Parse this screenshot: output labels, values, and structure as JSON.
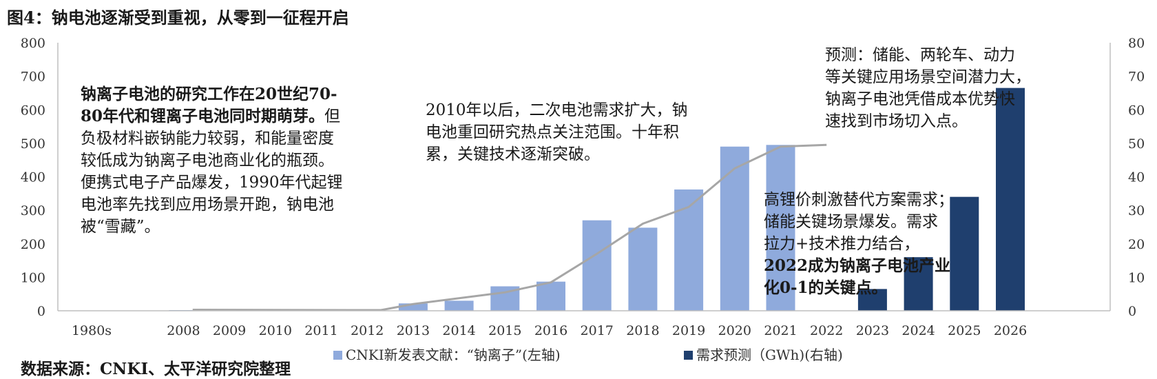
{
  "title": "图4：钠电池逐渐受到重视，从零到一征程开启",
  "source": "数据来源：CNKI、太平洋研究院整理",
  "colors": {
    "literature": "#8FAADC",
    "forecast": "#1F3F6E",
    "trend_line": "#A6A6A6",
    "highlight_year": "#C00000",
    "axis": "#BFBFBF"
  },
  "annotations": {
    "history": [
      {
        "parts": [
          {
            "text": "钠离子电池的研究工作在20世纪70-",
            "bold": true
          }
        ]
      },
      {
        "parts": [
          {
            "text": "80年代和锂离子电池同时期萌芽。",
            "bold": true
          },
          {
            "text": "但",
            "bold": false
          }
        ]
      },
      {
        "parts": [
          {
            "text": "负极材料嵌钠能力较弱，和能量密度",
            "bold": false
          }
        ]
      },
      {
        "parts": [
          {
            "text": "较低成为钠离子电池商业化的瓶颈。",
            "bold": false
          }
        ]
      },
      {
        "parts": [
          {
            "text": "便携式电子产品爆发，1990年代起锂",
            "bold": false
          }
        ]
      },
      {
        "parts": [
          {
            "text": "电池率先找到应用场景开跑，钠电池",
            "bold": false
          }
        ]
      },
      {
        "parts": [
          {
            "text": "被“雪藏”。",
            "bold": false
          }
        ]
      }
    ],
    "revival": [
      {
        "parts": [
          {
            "text": "2010年以后，二次电池需求扩大，钠",
            "bold": false
          }
        ]
      },
      {
        "parts": [
          {
            "text": "电池重回研究热点关注范围。十年积",
            "bold": false
          }
        ]
      },
      {
        "parts": [
          {
            "text": "累，关键技术逐渐突破。",
            "bold": false
          }
        ]
      }
    ],
    "drivers": [
      {
        "parts": [
          {
            "text": "高锂价刺激替代方案需求；",
            "bold": false
          }
        ]
      },
      {
        "parts": [
          {
            "text": "储能关键场景爆发。需求",
            "bold": false
          }
        ]
      },
      {
        "parts": [
          {
            "text": "拉力+技术推力结合，",
            "bold": false
          }
        ]
      },
      {
        "parts": [
          {
            "text": "2022成为钠离子电池产业",
            "bold": true
          }
        ]
      },
      {
        "parts": [
          {
            "text": "化0-1的关键点。",
            "bold": true
          }
        ]
      }
    ],
    "forecast": [
      {
        "parts": [
          {
            "text": "预测：储能、两轮车、动力",
            "bold": false
          }
        ]
      },
      {
        "parts": [
          {
            "text": "等关键应用场景空间潜力大，",
            "bold": false
          }
        ]
      },
      {
        "parts": [
          {
            "text": "钠离子电池凭借成本优势快",
            "bold": false
          }
        ]
      },
      {
        "parts": [
          {
            "text": "速找到市场切入点。",
            "bold": false
          }
        ]
      }
    ]
  },
  "chart_data": {
    "type": "bar",
    "categories": [
      "1980s",
      "",
      "2008",
      "2009",
      "2010",
      "2011",
      "2012",
      "2013",
      "2014",
      "2015",
      "2016",
      "2017",
      "2018",
      "2019",
      "2020",
      "2021",
      "2022",
      "2023",
      "2024",
      "2025",
      "2026"
    ],
    "highlight_category": "2022",
    "y_left": {
      "min": 0,
      "max": 800,
      "step": 100
    },
    "y_right": {
      "min": 0,
      "max": 80,
      "step": 10
    },
    "series": [
      {
        "name": "CNKI新发表文献：“钠离子”(左轴)",
        "type": "bar",
        "axis": "left",
        "values": [
          null,
          null,
          2,
          3,
          1,
          1,
          2,
          22,
          30,
          73,
          87,
          270,
          248,
          362,
          490,
          495,
          null,
          null,
          null,
          null,
          null
        ]
      },
      {
        "name": "需求预测（GWh)(右轴)",
        "type": "bar",
        "axis": "right",
        "values": [
          null,
          null,
          null,
          null,
          null,
          null,
          null,
          null,
          null,
          null,
          null,
          null,
          null,
          null,
          null,
          null,
          null,
          6.5,
          16,
          34,
          66.5
        ]
      }
    ],
    "trend_line": {
      "type": "line",
      "axis": "left",
      "points": [
        [
          2.2,
          3
        ],
        [
          6.3,
          2
        ],
        [
          7.0,
          20
        ],
        [
          9.0,
          55
        ],
        [
          10.0,
          85
        ],
        [
          11.0,
          170
        ],
        [
          12.0,
          260
        ],
        [
          13.0,
          310
        ],
        [
          14.0,
          425
        ],
        [
          15.0,
          490
        ],
        [
          16.0,
          495
        ]
      ]
    },
    "legend_position": "bottom",
    "grid": false
  }
}
